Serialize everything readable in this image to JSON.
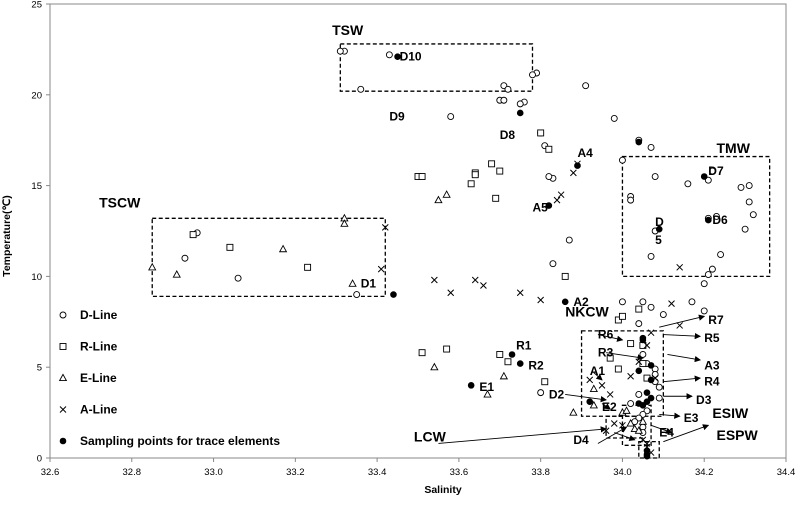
{
  "chart_data": {
    "type": "scatter",
    "title": "",
    "xlabel": "Salinity",
    "ylabel": "Temperature(℃)",
    "xlim": [
      32.6,
      34.4
    ],
    "ylim": [
      0,
      25
    ],
    "xticks": [
      "32.6",
      "32.8",
      "33.0",
      "33.2",
      "33.4",
      "33.6",
      "33.8",
      "34.0",
      "34.2",
      "34.4"
    ],
    "yticks": [
      "0",
      "5",
      "10",
      "15",
      "20",
      "25"
    ],
    "grid": false,
    "legend_position": "left",
    "series": [
      {
        "name": "D-Line",
        "marker": "circle",
        "points": [
          [
            33.32,
            22.4
          ],
          [
            33.31,
            22.4
          ],
          [
            33.43,
            22.2
          ],
          [
            33.36,
            20.3
          ],
          [
            33.71,
            20.5
          ],
          [
            33.72,
            20.3
          ],
          [
            33.7,
            19.7
          ],
          [
            33.71,
            19.7
          ],
          [
            33.76,
            19.6
          ],
          [
            33.75,
            19.5
          ],
          [
            33.79,
            21.2
          ],
          [
            33.78,
            21.1
          ],
          [
            33.91,
            20.5
          ],
          [
            33.58,
            18.8
          ],
          [
            33.8,
            17.9
          ],
          [
            33.81,
            17.2
          ],
          [
            33.83,
            15.4
          ],
          [
            33.82,
            15.5
          ],
          [
            33.98,
            18.7
          ],
          [
            34.0,
            16.4
          ],
          [
            34.04,
            17.5
          ],
          [
            34.07,
            17.1
          ],
          [
            34.16,
            15.1
          ],
          [
            34.02,
            14.4
          ],
          [
            34.02,
            14.2
          ],
          [
            34.08,
            15.5
          ],
          [
            34.21,
            15.3
          ],
          [
            34.22,
            15.8
          ],
          [
            34.29,
            14.9
          ],
          [
            34.31,
            15.0
          ],
          [
            34.31,
            14.1
          ],
          [
            34.32,
            13.4
          ],
          [
            34.3,
            12.6
          ],
          [
            34.23,
            13.3
          ],
          [
            34.21,
            13.2
          ],
          [
            34.08,
            12.5
          ],
          [
            34.07,
            11.1
          ],
          [
            34.24,
            11.2
          ],
          [
            34.22,
            10.4
          ],
          [
            34.21,
            10.1
          ],
          [
            34.2,
            9.6
          ],
          [
            33.83,
            10.7
          ],
          [
            33.87,
            12.0
          ],
          [
            32.96,
            12.4
          ],
          [
            32.93,
            11.0
          ],
          [
            33.06,
            9.9
          ],
          [
            33.35,
            9.0
          ],
          [
            34.05,
            8.6
          ],
          [
            34.07,
            8.3
          ],
          [
            34.1,
            7.9
          ],
          [
            34.17,
            8.6
          ],
          [
            34.2,
            8.1
          ],
          [
            34.0,
            8.6
          ],
          [
            34.04,
            7.4
          ],
          [
            34.05,
            5.7
          ],
          [
            34.06,
            5.2
          ],
          [
            34.08,
            4.9
          ],
          [
            34.08,
            4.6
          ],
          [
            34.04,
            3.5
          ],
          [
            34.02,
            3.0
          ],
          [
            34.06,
            2.6
          ],
          [
            34.05,
            2.4
          ],
          [
            34.04,
            2.2
          ],
          [
            34.03,
            2.0
          ],
          [
            34.05,
            1.7
          ],
          [
            34.05,
            1.4
          ],
          [
            33.8,
            3.6
          ],
          [
            34.09,
            3.3
          ],
          [
            34.09,
            3.9
          ],
          [
            34.08,
            4.2
          ]
        ]
      },
      {
        "name": "R-Line",
        "marker": "square",
        "points": [
          [
            32.95,
            12.3
          ],
          [
            33.04,
            11.6
          ],
          [
            33.23,
            10.5
          ],
          [
            33.5,
            15.5
          ],
          [
            33.51,
            15.5
          ],
          [
            33.64,
            15.7
          ],
          [
            33.64,
            15.6
          ],
          [
            33.63,
            15.1
          ],
          [
            33.68,
            16.2
          ],
          [
            33.7,
            15.8
          ],
          [
            33.69,
            14.3
          ],
          [
            33.8,
            17.9
          ],
          [
            33.82,
            17.0
          ],
          [
            33.86,
            10.0
          ],
          [
            33.51,
            5.8
          ],
          [
            33.57,
            6.0
          ],
          [
            33.7,
            5.7
          ],
          [
            33.72,
            5.3
          ],
          [
            33.81,
            4.2
          ],
          [
            33.99,
            7.6
          ],
          [
            34.0,
            7.8
          ],
          [
            34.04,
            8.2
          ],
          [
            34.02,
            6.3
          ],
          [
            34.05,
            6.2
          ],
          [
            34.05,
            5.2
          ],
          [
            34.06,
            4.4
          ],
          [
            33.97,
            5.5
          ],
          [
            33.99,
            4.9
          ]
        ]
      },
      {
        "name": "E-Line",
        "marker": "triangle",
        "points": [
          [
            32.85,
            10.5
          ],
          [
            32.91,
            10.1
          ],
          [
            33.17,
            11.5
          ],
          [
            33.32,
            13.2
          ],
          [
            33.32,
            12.9
          ],
          [
            33.34,
            9.6
          ],
          [
            33.55,
            14.2
          ],
          [
            33.57,
            14.5
          ],
          [
            33.54,
            5.0
          ],
          [
            33.71,
            4.5
          ],
          [
            33.67,
            3.5
          ],
          [
            33.93,
            3.8
          ],
          [
            33.93,
            2.9
          ],
          [
            34.0,
            2.5
          ],
          [
            34.01,
            2.6
          ],
          [
            34.02,
            1.9
          ],
          [
            34.03,
            1.6
          ],
          [
            34.04,
            1.5
          ],
          [
            33.88,
            2.5
          ],
          [
            34.05,
            2.0
          ]
        ]
      },
      {
        "name": "A-Line",
        "marker": "x",
        "points": [
          [
            33.42,
            12.7
          ],
          [
            33.41,
            10.4
          ],
          [
            33.54,
            9.8
          ],
          [
            33.58,
            9.1
          ],
          [
            33.64,
            9.8
          ],
          [
            33.66,
            9.5
          ],
          [
            33.75,
            9.1
          ],
          [
            33.8,
            8.7
          ],
          [
            33.84,
            14.2
          ],
          [
            33.85,
            14.5
          ],
          [
            33.88,
            15.7
          ],
          [
            33.89,
            16.2
          ],
          [
            33.92,
            4.3
          ],
          [
            33.95,
            4.0
          ],
          [
            33.97,
            3.5
          ],
          [
            33.96,
            1.5
          ],
          [
            33.98,
            1.9
          ],
          [
            34.0,
            1.8
          ],
          [
            34.02,
            4.5
          ],
          [
            34.04,
            5.3
          ],
          [
            34.07,
            6.9
          ],
          [
            34.12,
            8.5
          ],
          [
            34.14,
            7.3
          ],
          [
            34.14,
            10.5
          ],
          [
            34.06,
            6.2
          ],
          [
            34.08,
            4.4
          ],
          [
            34.06,
            0.8
          ],
          [
            34.06,
            0.6
          ],
          [
            34.07,
            0.3
          ],
          [
            34.05,
            1.0
          ]
        ]
      },
      {
        "name": "Sampling points for trace elements",
        "marker": "filled-circle",
        "points": [
          [
            33.45,
            22.1
          ],
          [
            33.75,
            19.0
          ],
          [
            33.89,
            16.1
          ],
          [
            34.04,
            17.4
          ],
          [
            33.82,
            13.9
          ],
          [
            34.2,
            15.5
          ],
          [
            34.09,
            12.6
          ],
          [
            34.21,
            13.1
          ],
          [
            33.44,
            9.0
          ],
          [
            33.86,
            8.6
          ],
          [
            33.63,
            4.0
          ],
          [
            33.73,
            5.7
          ],
          [
            33.75,
            5.2
          ],
          [
            34.05,
            6.6
          ],
          [
            34.05,
            6.5
          ],
          [
            34.04,
            4.8
          ],
          [
            34.07,
            5.1
          ],
          [
            34.07,
            4.3
          ],
          [
            34.06,
            3.6
          ],
          [
            34.06,
            3.1
          ],
          [
            34.05,
            2.9
          ],
          [
            33.92,
            3.1
          ],
          [
            34.04,
            3.0
          ],
          [
            34.07,
            3.3
          ],
          [
            34.06,
            0.4
          ],
          [
            34.06,
            0.2
          ],
          [
            34.06,
            0.1
          ]
        ]
      }
    ],
    "point_labels": [
      {
        "text": "D10",
        "at": [
          33.455,
          22.1
        ]
      },
      {
        "text": "D9",
        "at": [
          33.43,
          18.8
        ]
      },
      {
        "text": "D8",
        "at": [
          33.7,
          17.8
        ]
      },
      {
        "text": "A4",
        "at": [
          33.89,
          16.8
        ]
      },
      {
        "text": "A5",
        "at": [
          33.78,
          13.8
        ]
      },
      {
        "text": "D7",
        "at": [
          34.21,
          15.8
        ]
      },
      {
        "text": "D6",
        "at": [
          34.22,
          13.1
        ]
      },
      {
        "text": "D",
        "at": [
          34.08,
          13.0
        ]
      },
      {
        "text": "5",
        "at": [
          34.08,
          12.0
        ]
      },
      {
        "text": "D1",
        "at": [
          33.36,
          9.6
        ]
      },
      {
        "text": "A2",
        "at": [
          33.88,
          8.6
        ]
      },
      {
        "text": "R1",
        "at": [
          33.74,
          6.2
        ]
      },
      {
        "text": "R2",
        "at": [
          33.77,
          5.1
        ]
      },
      {
        "text": "E1",
        "at": [
          33.65,
          3.9
        ]
      },
      {
        "text": "D2",
        "at": [
          33.82,
          3.5
        ]
      },
      {
        "text": "A1",
        "at": [
          33.92,
          4.8
        ]
      },
      {
        "text": "E2",
        "at": [
          33.95,
          2.8
        ]
      },
      {
        "text": "D4",
        "at": [
          33.88,
          1.0
        ]
      },
      {
        "text": "R6",
        "at": [
          33.94,
          6.8
        ]
      },
      {
        "text": "R3",
        "at": [
          33.94,
          5.8
        ]
      },
      {
        "text": "R7",
        "at": [
          34.21,
          7.6
        ]
      },
      {
        "text": "R5",
        "at": [
          34.2,
          6.6
        ]
      },
      {
        "text": "A3",
        "at": [
          34.2,
          5.1
        ]
      },
      {
        "text": "R4",
        "at": [
          34.2,
          4.2
        ]
      },
      {
        "text": "D3",
        "at": [
          34.18,
          3.2
        ]
      },
      {
        "text": "E3",
        "at": [
          34.15,
          2.2
        ]
      },
      {
        "text": "E4",
        "at": [
          34.09,
          1.4
        ]
      }
    ],
    "water_masses": [
      {
        "text": "TSW",
        "label_at": [
          33.29,
          23.3
        ],
        "box": [
          33.31,
          20.2,
          33.78,
          22.8
        ]
      },
      {
        "text": "TMW",
        "label_at": [
          34.23,
          16.8
        ],
        "box": [
          34.0,
          10.0,
          34.36,
          16.6
        ]
      },
      {
        "text": "TSCW",
        "label_at": [
          32.72,
          13.8
        ],
        "box": [
          32.85,
          8.9,
          33.42,
          13.2
        ]
      },
      {
        "text": "NKCW",
        "label_at": [
          33.86,
          7.8
        ],
        "box": [
          33.9,
          2.3,
          34.1,
          7.0
        ]
      },
      {
        "text": "ESIW",
        "label_at": [
          34.22,
          2.2
        ],
        "box": [
          34.0,
          0.7,
          34.07,
          2.9
        ]
      },
      {
        "text": "LCW",
        "label_at": [
          33.49,
          0.9
        ],
        "box": [
          33.96,
          1.1,
          34.05,
          2.3
        ]
      },
      {
        "text": "ESPW",
        "label_at": [
          34.23,
          1.0
        ],
        "box": [
          34.04,
          0,
          34.09,
          0.9
        ]
      }
    ],
    "annotation_arrows": [
      {
        "from": [
          33.94,
          6.8
        ],
        "to": [
          34.0,
          6.5
        ]
      },
      {
        "from": [
          33.96,
          5.8
        ],
        "to": [
          34.05,
          5.5
        ]
      },
      {
        "from": [
          34.09,
          7.2
        ],
        "to": [
          34.2,
          7.8
        ]
      },
      {
        "from": [
          34.1,
          6.8
        ],
        "to": [
          34.19,
          6.7
        ]
      },
      {
        "from": [
          34.11,
          5.7
        ],
        "to": [
          34.19,
          5.4
        ]
      },
      {
        "from": [
          34.1,
          4.2
        ],
        "to": [
          34.19,
          4.4
        ]
      },
      {
        "from": [
          34.1,
          3.4
        ],
        "to": [
          34.17,
          3.4
        ]
      },
      {
        "from": [
          34.09,
          2.4
        ],
        "to": [
          34.14,
          2.3
        ]
      },
      {
        "from": [
          34.07,
          1.8
        ],
        "to": [
          34.12,
          1.4
        ]
      },
      {
        "from": [
          34.1,
          0.9
        ],
        "to": [
          34.21,
          1.8
        ]
      },
      {
        "from": [
          33.86,
          3.5
        ],
        "to": [
          33.96,
          3.2
        ]
      },
      {
        "from": [
          33.93,
          4.7
        ],
        "to": [
          33.95,
          4.3
        ]
      },
      {
        "from": [
          33.95,
          3.0
        ],
        "to": [
          33.97,
          2.7
        ]
      },
      {
        "from": [
          33.98,
          1.4
        ],
        "to": [
          34.03,
          1.0
        ]
      },
      {
        "from": [
          33.55,
          0.8
        ],
        "to": [
          33.96,
          1.6
        ]
      },
      {
        "from": [
          33.94,
          0.8
        ],
        "to": [
          34.01,
          1.7
        ]
      }
    ]
  },
  "legend": [
    {
      "label": "D-Line",
      "marker": "circle"
    },
    {
      "label": "R-Line",
      "marker": "square"
    },
    {
      "label": "E-Line",
      "marker": "triangle"
    },
    {
      "label": "A-Line",
      "marker": "x"
    },
    {
      "label": "Sampling points for trace elements",
      "marker": "filled-circle"
    }
  ],
  "colors": {
    "ink": "#000000",
    "background": "#ffffff"
  }
}
